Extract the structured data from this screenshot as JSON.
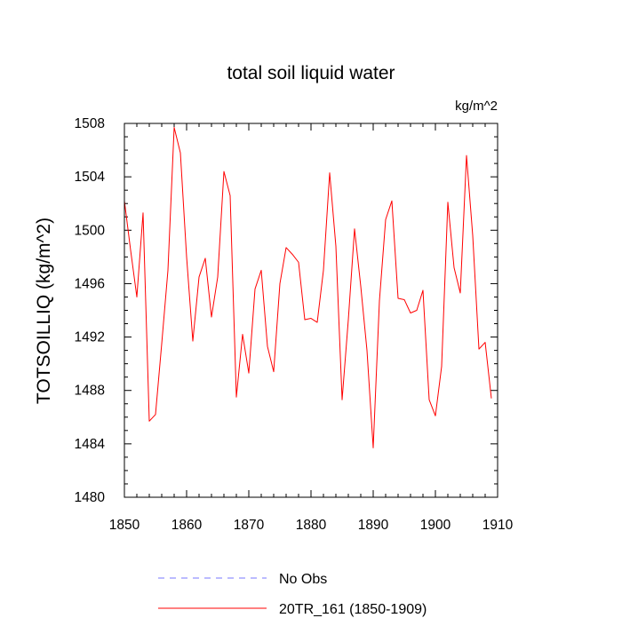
{
  "chart_data": {
    "type": "line",
    "title": "total soil liquid water",
    "units_label": "kg/m^2",
    "ylabel": "TOTSOILLIQ  (kg/m^2)",
    "xlabel": "",
    "xlim": [
      1850,
      1910
    ],
    "ylim": [
      1480,
      1508
    ],
    "x_ticks": [
      1850,
      1860,
      1870,
      1880,
      1890,
      1900,
      1910
    ],
    "y_ticks": [
      1480,
      1484,
      1488,
      1492,
      1496,
      1500,
      1504,
      1508
    ],
    "grid": false,
    "legend": {
      "position": "bottom-center"
    },
    "series": [
      {
        "name": "No Obs",
        "style": "dashed",
        "color": "#7777ff",
        "x": [],
        "values": []
      },
      {
        "name": "20TR_161 (1850-1909)",
        "style": "solid",
        "color": "#ff0000",
        "x": [
          1850,
          1851,
          1852,
          1853,
          1854,
          1855,
          1856,
          1857,
          1858,
          1859,
          1860,
          1861,
          1862,
          1863,
          1864,
          1865,
          1866,
          1867,
          1868,
          1869,
          1870,
          1871,
          1872,
          1873,
          1874,
          1875,
          1876,
          1877,
          1878,
          1879,
          1880,
          1881,
          1882,
          1883,
          1884,
          1885,
          1886,
          1887,
          1888,
          1889,
          1890,
          1891,
          1892,
          1893,
          1894,
          1895,
          1896,
          1897,
          1898,
          1899,
          1900,
          1901,
          1902,
          1903,
          1904,
          1905,
          1906,
          1907,
          1908,
          1909
        ],
        "values": [
          1502.2,
          1498.5,
          1495.0,
          1501.3,
          1485.7,
          1486.2,
          1491.5,
          1497.0,
          1507.7,
          1505.8,
          1498.0,
          1491.7,
          1496.5,
          1497.9,
          1493.5,
          1496.5,
          1504.4,
          1502.6,
          1487.5,
          1492.2,
          1489.3,
          1495.6,
          1497.0,
          1491.3,
          1489.4,
          1496.0,
          1498.7,
          1498.2,
          1497.6,
          1493.3,
          1493.4,
          1493.1,
          1497.0,
          1504.3,
          1498.8,
          1487.3,
          1493.3,
          1500.1,
          1495.8,
          1491.0,
          1483.7,
          1494.7,
          1500.8,
          1502.2,
          1494.9,
          1494.8,
          1493.8,
          1494.0,
          1495.5,
          1487.3,
          1486.1,
          1489.8,
          1502.1,
          1497.2,
          1495.3,
          1505.6,
          1499.6,
          1491.1,
          1491.6,
          1487.4
        ]
      }
    ]
  }
}
